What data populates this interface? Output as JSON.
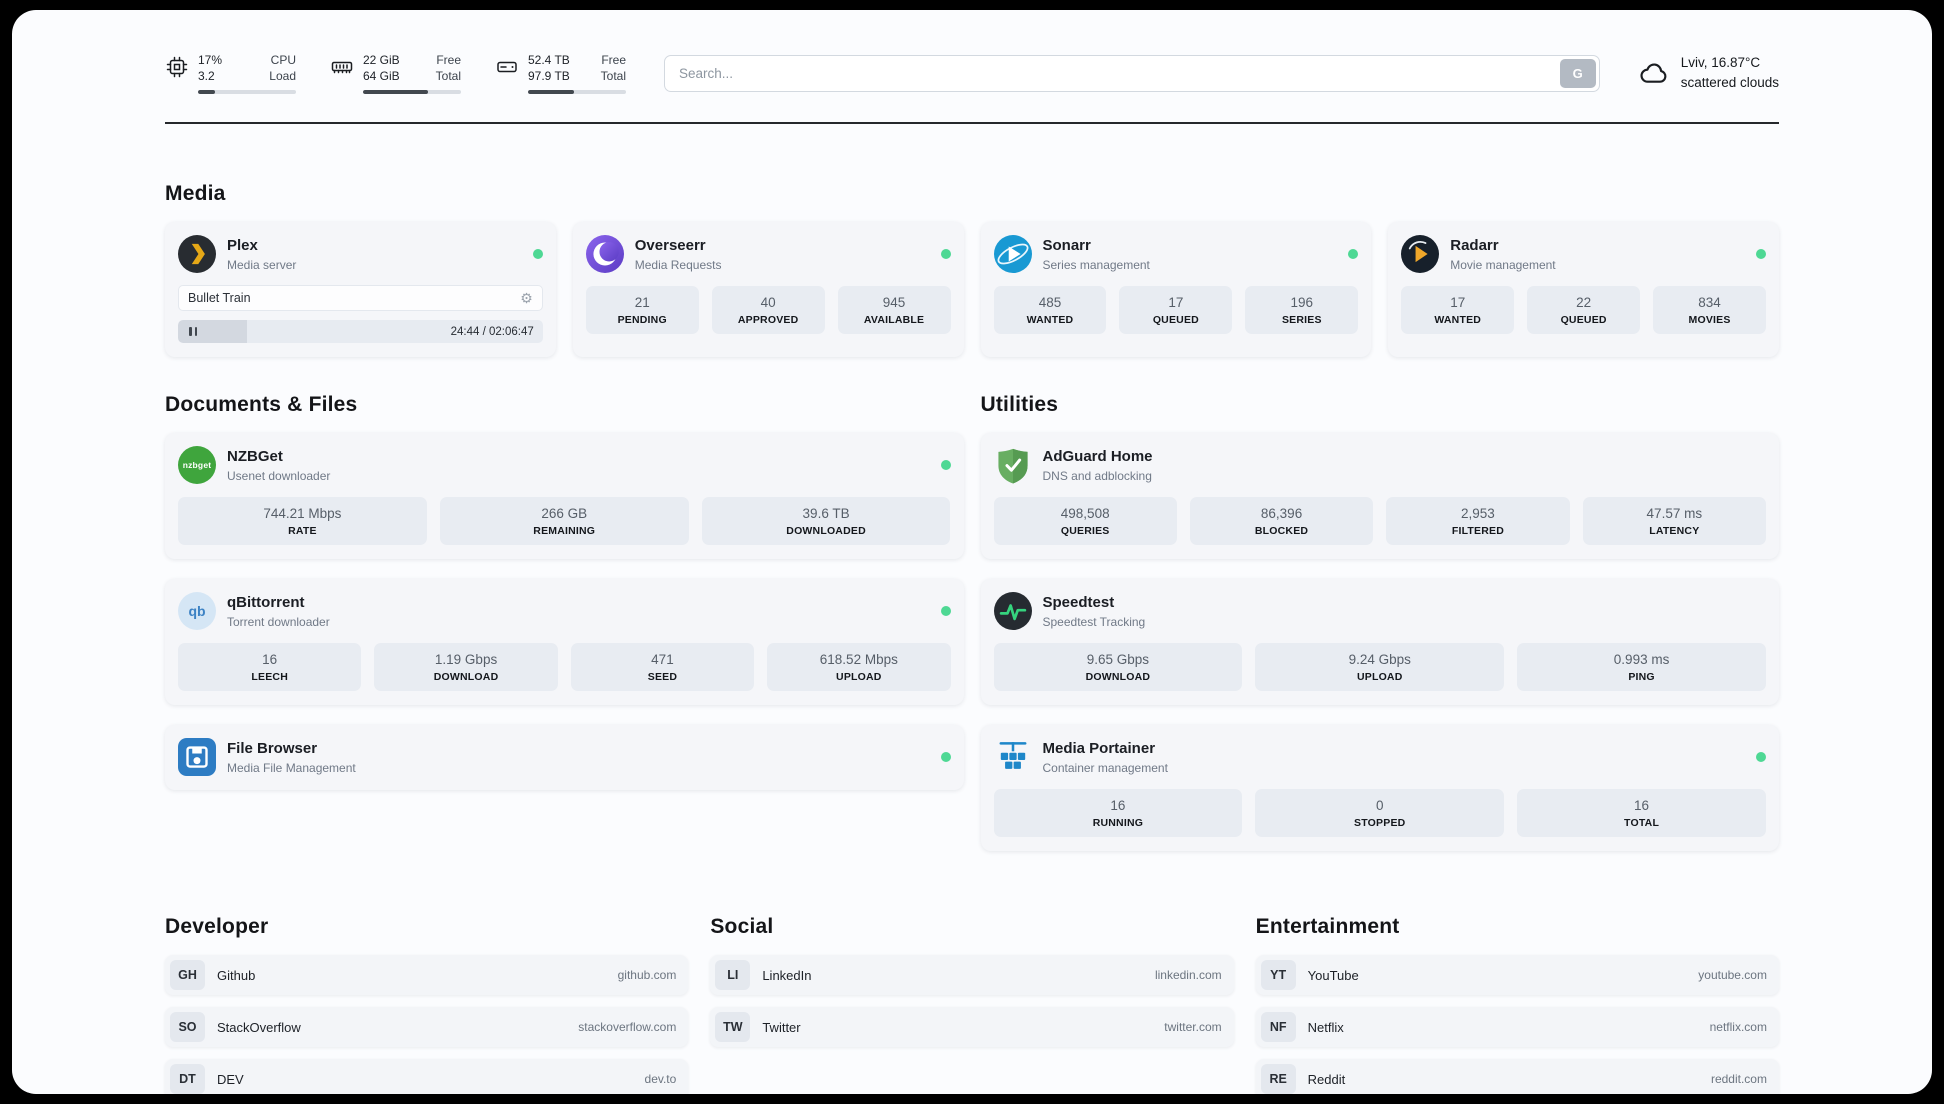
{
  "topbar": {
    "cpu": {
      "value_top": "17%",
      "value_bottom": "3.2",
      "label_top": "CPU",
      "label_bottom": "Load",
      "progress_pct": 17
    },
    "ram": {
      "value_top": "22 GiB",
      "value_bottom": "64 GiB",
      "label_top": "Free",
      "label_bottom": "Total",
      "progress_pct": 66
    },
    "disk": {
      "value_top": "52.4 TB",
      "value_bottom": "97.9 TB",
      "label_top": "Free",
      "label_bottom": "Total",
      "progress_pct": 47
    },
    "search": {
      "placeholder": "Search...",
      "button_label": "G"
    },
    "weather": {
      "location": "Lviv, 16.87°C",
      "condition": "scattered clouds"
    }
  },
  "sections": {
    "media": "Media",
    "documents": "Documents & Files",
    "utilities": "Utilities",
    "developer": "Developer",
    "social": "Social",
    "entertainment": "Entertainment"
  },
  "apps": {
    "plex": {
      "name": "Plex",
      "subtitle": "Media server",
      "now_playing": "Bullet Train",
      "time": "24:44 / 02:06:47",
      "progress_pct": 19
    },
    "overseerr": {
      "name": "Overseerr",
      "subtitle": "Media Requests",
      "stats": [
        {
          "value": "21",
          "label": "PENDING"
        },
        {
          "value": "40",
          "label": "APPROVED"
        },
        {
          "value": "945",
          "label": "AVAILABLE"
        }
      ]
    },
    "sonarr": {
      "name": "Sonarr",
      "subtitle": "Series management",
      "stats": [
        {
          "value": "485",
          "label": "WANTED"
        },
        {
          "value": "17",
          "label": "QUEUED"
        },
        {
          "value": "196",
          "label": "SERIES"
        }
      ]
    },
    "radarr": {
      "name": "Radarr",
      "subtitle": "Movie management",
      "stats": [
        {
          "value": "17",
          "label": "WANTED"
        },
        {
          "value": "22",
          "label": "QUEUED"
        },
        {
          "value": "834",
          "label": "MOVIES"
        }
      ]
    },
    "nzbget": {
      "name": "NZBGet",
      "subtitle": "Usenet downloader",
      "stats": [
        {
          "value": "744.21 Mbps",
          "label": "RATE"
        },
        {
          "value": "266 GB",
          "label": "REMAINING"
        },
        {
          "value": "39.6 TB",
          "label": "DOWNLOADED"
        }
      ]
    },
    "qbittorrent": {
      "name": "qBittorrent",
      "subtitle": "Torrent downloader",
      "stats": [
        {
          "value": "16",
          "label": "LEECH"
        },
        {
          "value": "1.19 Gbps",
          "label": "DOWNLOAD"
        },
        {
          "value": "471",
          "label": "SEED"
        },
        {
          "value": "618.52 Mbps",
          "label": "UPLOAD"
        }
      ]
    },
    "filebrowser": {
      "name": "File Browser",
      "subtitle": "Media File Management"
    },
    "adguard": {
      "name": "AdGuard Home",
      "subtitle": "DNS and adblocking",
      "stats": [
        {
          "value": "498,508",
          "label": "QUERIES"
        },
        {
          "value": "86,396",
          "label": "BLOCKED"
        },
        {
          "value": "2,953",
          "label": "FILTERED"
        },
        {
          "value": "47.57 ms",
          "label": "LATENCY"
        }
      ]
    },
    "speedtest": {
      "name": "Speedtest",
      "subtitle": "Speedtest Tracking",
      "stats": [
        {
          "value": "9.65 Gbps",
          "label": "DOWNLOAD"
        },
        {
          "value": "9.24 Gbps",
          "label": "UPLOAD"
        },
        {
          "value": "0.993 ms",
          "label": "PING"
        }
      ]
    },
    "portainer": {
      "name": "Media Portainer",
      "subtitle": "Container management",
      "stats": [
        {
          "value": "16",
          "label": "RUNNING"
        },
        {
          "value": "0",
          "label": "STOPPED"
        },
        {
          "value": "16",
          "label": "TOTAL"
        }
      ]
    }
  },
  "bookmarks": {
    "developer": [
      {
        "abbr": "GH",
        "name": "Github",
        "url": "github.com"
      },
      {
        "abbr": "SO",
        "name": "StackOverflow",
        "url": "stackoverflow.com"
      },
      {
        "abbr": "DT",
        "name": "DEV",
        "url": "dev.to"
      }
    ],
    "social": [
      {
        "abbr": "LI",
        "name": "LinkedIn",
        "url": "linkedin.com"
      },
      {
        "abbr": "TW",
        "name": "Twitter",
        "url": "twitter.com"
      }
    ],
    "entertainment": [
      {
        "abbr": "YT",
        "name": "YouTube",
        "url": "youtube.com"
      },
      {
        "abbr": "NF",
        "name": "Netflix",
        "url": "netflix.com"
      },
      {
        "abbr": "RE",
        "name": "Reddit",
        "url": "reddit.com"
      }
    ]
  },
  "icons": {
    "gear": "⚙",
    "nzbget_text": "nzbget",
    "qbittorrent_text": "qb"
  },
  "colors": {
    "status_online": "#4ed894",
    "plex_accent": "#e6a817",
    "divider": "#25282c"
  }
}
